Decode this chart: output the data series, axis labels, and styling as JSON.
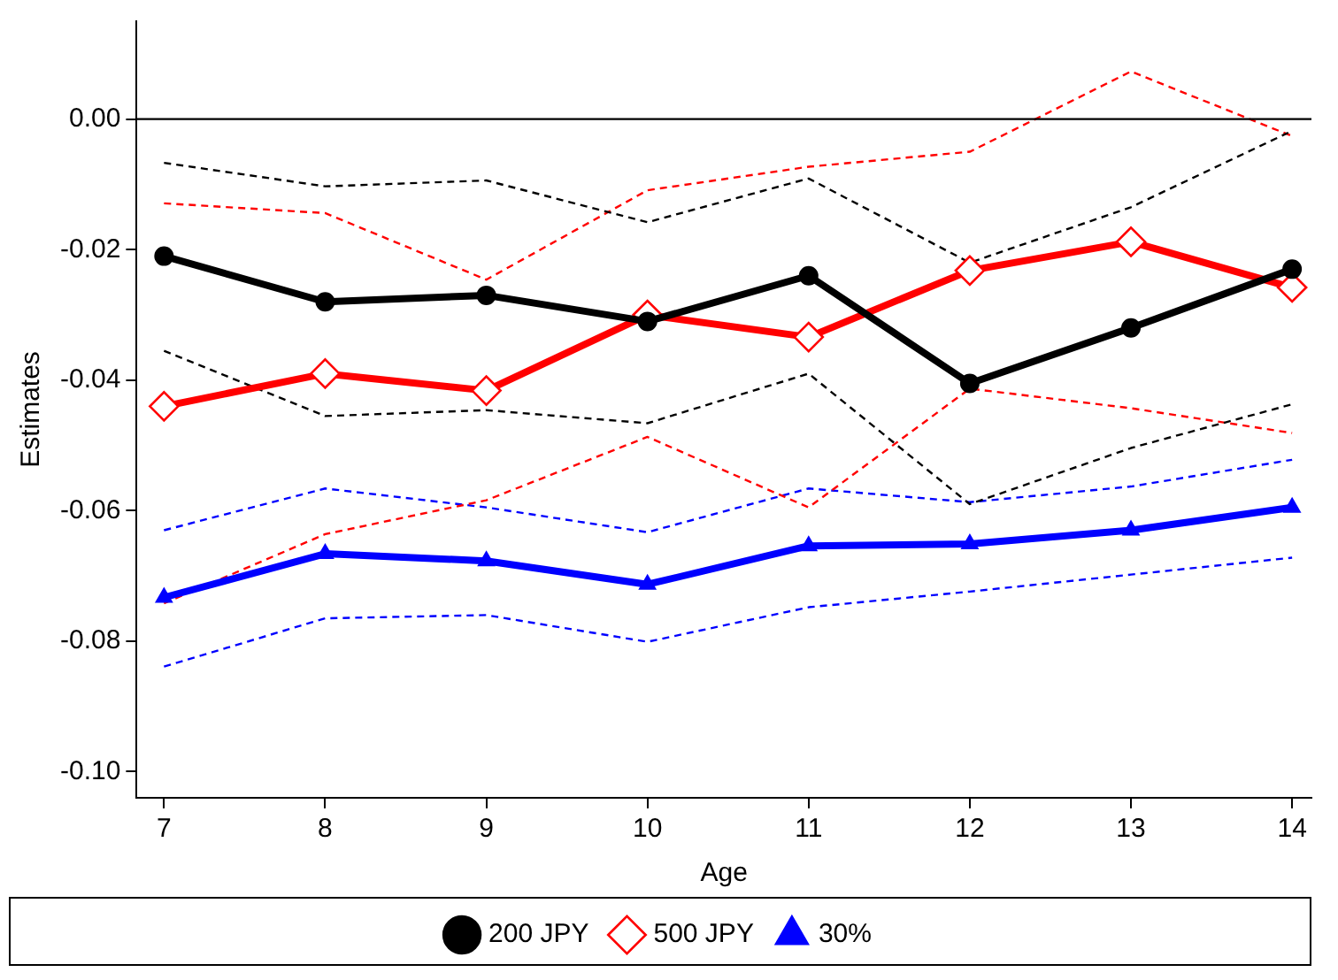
{
  "chart_data": {
    "type": "line",
    "xlabel": "Age",
    "ylabel": "Estimates",
    "x": [
      7,
      8,
      9,
      10,
      11,
      12,
      13,
      14
    ],
    "series": [
      {
        "name": "200 JPY",
        "color": "#000000",
        "marker": "circle",
        "line_style": "solid",
        "values": [
          -0.021,
          -0.028,
          -0.027,
          -0.031,
          -0.024,
          -0.0405,
          -0.032,
          -0.023
        ]
      },
      {
        "name": "500 JPY",
        "color": "#ff0000",
        "marker": "diamond",
        "line_style": "solid",
        "values": [
          -0.044,
          -0.039,
          -0.0416,
          -0.03,
          -0.0334,
          -0.0232,
          -0.0188,
          -0.0258
        ]
      },
      {
        "name": "30%",
        "color": "#0000ff",
        "marker": "triangle",
        "line_style": "solid",
        "values": [
          -0.0733,
          -0.0666,
          -0.0677,
          -0.0713,
          -0.0654,
          -0.0651,
          -0.063,
          -0.0595
        ]
      },
      {
        "color": "#000000",
        "marker": "none",
        "line_style": "dashed",
        "values": [
          -0.0067,
          -0.0103,
          -0.0094,
          -0.0158,
          -0.0091,
          -0.022,
          -0.0135,
          -0.0018
        ]
      },
      {
        "color": "#000000",
        "marker": "none",
        "line_style": "dashed",
        "values": [
          -0.0355,
          -0.0455,
          -0.0446,
          -0.0466,
          -0.039,
          -0.059,
          -0.0504,
          -0.0437
        ]
      },
      {
        "color": "#ff0000",
        "marker": "none",
        "line_style": "dashed",
        "values": [
          -0.0129,
          -0.0144,
          -0.0246,
          -0.0109,
          -0.0073,
          -0.005,
          0.0073,
          -0.0026
        ]
      },
      {
        "color": "#ff0000",
        "marker": "none",
        "line_style": "dashed",
        "values": [
          -0.0742,
          -0.0636,
          -0.0584,
          -0.0487,
          -0.0595,
          -0.0413,
          -0.0443,
          -0.0481
        ]
      },
      {
        "color": "#0000ff",
        "marker": "none",
        "line_style": "dashed",
        "values": [
          -0.063,
          -0.0566,
          -0.0595,
          -0.0633,
          -0.0566,
          -0.0587,
          -0.0563,
          -0.0522
        ]
      },
      {
        "color": "#0000ff",
        "marker": "none",
        "line_style": "dashed",
        "values": [
          -0.0839,
          -0.0765,
          -0.076,
          -0.0801,
          -0.0748,
          -0.0724,
          -0.0698,
          -0.0672
        ]
      }
    ],
    "xlim": [
      6.83,
      14.12
    ],
    "xticks": [
      7,
      8,
      9,
      10,
      11,
      12,
      13,
      14
    ],
    "ylim": [
      -0.104,
      0.015
    ],
    "yticks": [
      {
        "value": 0,
        "label": "0.00"
      },
      {
        "value": -0.02,
        "label": "-0.02"
      },
      {
        "value": -0.04,
        "label": "-0.04"
      },
      {
        "value": -0.06,
        "label": "-0.06"
      },
      {
        "value": -0.08,
        "label": "-0.08"
      },
      {
        "value": -0.1,
        "label": "-0.10"
      }
    ],
    "ref_lines": [
      {
        "axis": "y",
        "value": 0,
        "color": "#000000"
      }
    ],
    "grid": false,
    "legend": "bottom"
  }
}
